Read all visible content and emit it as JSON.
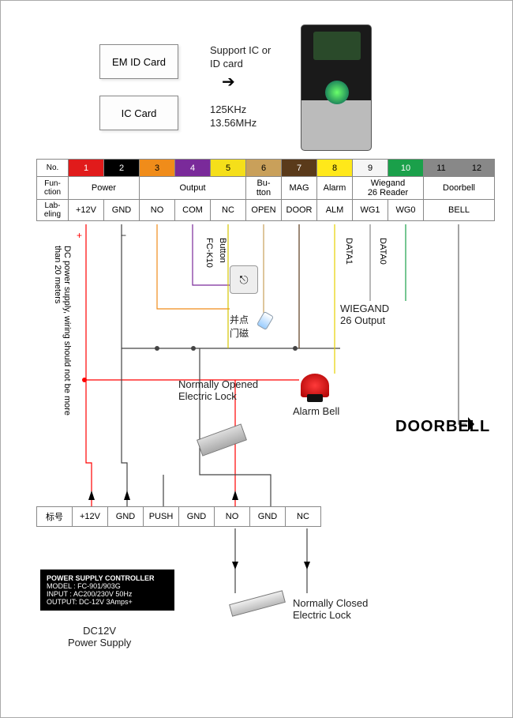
{
  "cards": {
    "em": "EM ID Card",
    "ic": "IC Card"
  },
  "support": {
    "line1": "Support IC or",
    "line2": "ID card",
    "freq1": "125KHz",
    "freq2": "13.56MHz"
  },
  "table": {
    "rowHeaders": [
      "No.",
      "Fun-\nction",
      "Lab-\neling"
    ],
    "nums": [
      "1",
      "2",
      "3",
      "4",
      "5",
      "6",
      "7",
      "8",
      "9",
      "10",
      "11",
      "12"
    ],
    "colors": [
      "#e11b1b",
      "#000000",
      "#f08c1a",
      "#7a2a9a",
      "#f5df1a",
      "#c9a05a",
      "#5a3a1a",
      "#ffe81a",
      "#f5f5f5",
      "#1aa04a",
      "#888888",
      "#888888"
    ],
    "numTextColors": [
      "#fff",
      "#fff",
      "#000",
      "#fff",
      "#000",
      "#000",
      "#fff",
      "#000",
      "#000",
      "#fff",
      "#000",
      "#000"
    ],
    "functions": [
      {
        "label": "Power",
        "span": 2
      },
      {
        "label": "Output",
        "span": 3
      },
      {
        "label": "Bu-\ntton",
        "span": 1
      },
      {
        "label": "MAG",
        "span": 1
      },
      {
        "label": "Alarm",
        "span": 1
      },
      {
        "label": "Wiegand\n26 Reader",
        "span": 2
      },
      {
        "label": "Doorbell",
        "span": 2
      }
    ],
    "labels": [
      "+12V",
      "GND",
      "NO",
      "COM",
      "NC",
      "OPEN",
      "DOOR",
      "ALM",
      "WG1",
      "WG0",
      "BELL"
    ],
    "labelSpans": [
      1,
      1,
      1,
      1,
      1,
      1,
      1,
      1,
      1,
      1,
      2
    ]
  },
  "annot": {
    "dcpower": "DC power supply, wiring should not be more\nthan 20 meters",
    "fck10": "FC-K10",
    "button": "Button",
    "bingdian": "并点",
    "menci": "门磁",
    "data1": "DATA1",
    "data0": "DATA0",
    "wiegand": "WIEGAND\n26 Output",
    "nolock": "Normally Opened\nElectric Lock",
    "alarmbell": "Alarm Bell",
    "doorbell": "DOORBELL",
    "nclock": "Normally Closed\nElectric Lock",
    "dc12v": "DC12V\nPower Supply"
  },
  "table2": {
    "header": "标号",
    "cells": [
      "+12V",
      "GND",
      "PUSH",
      "GND",
      "NO",
      "GND",
      "NC"
    ]
  },
  "psu": {
    "l1": "POWER SUPPLY CONTROLLER",
    "l2": "MODEL : FC-901/903G",
    "l3": "INPUT  : AC200/230V   50Hz",
    "l4": "OUTPUT: DC-12V  3Amps+"
  },
  "wireColors": {
    "pos": "#ff0000",
    "neg": "#444",
    "no": "#f08c1a",
    "com": "#7a2a9a",
    "nc": "#d4c400",
    "open": "#c9a05a",
    "door": "#5a3a1a",
    "alm": "#e5d000",
    "wg1": "#888",
    "wg0": "#1aa04a",
    "bell": "#666"
  }
}
